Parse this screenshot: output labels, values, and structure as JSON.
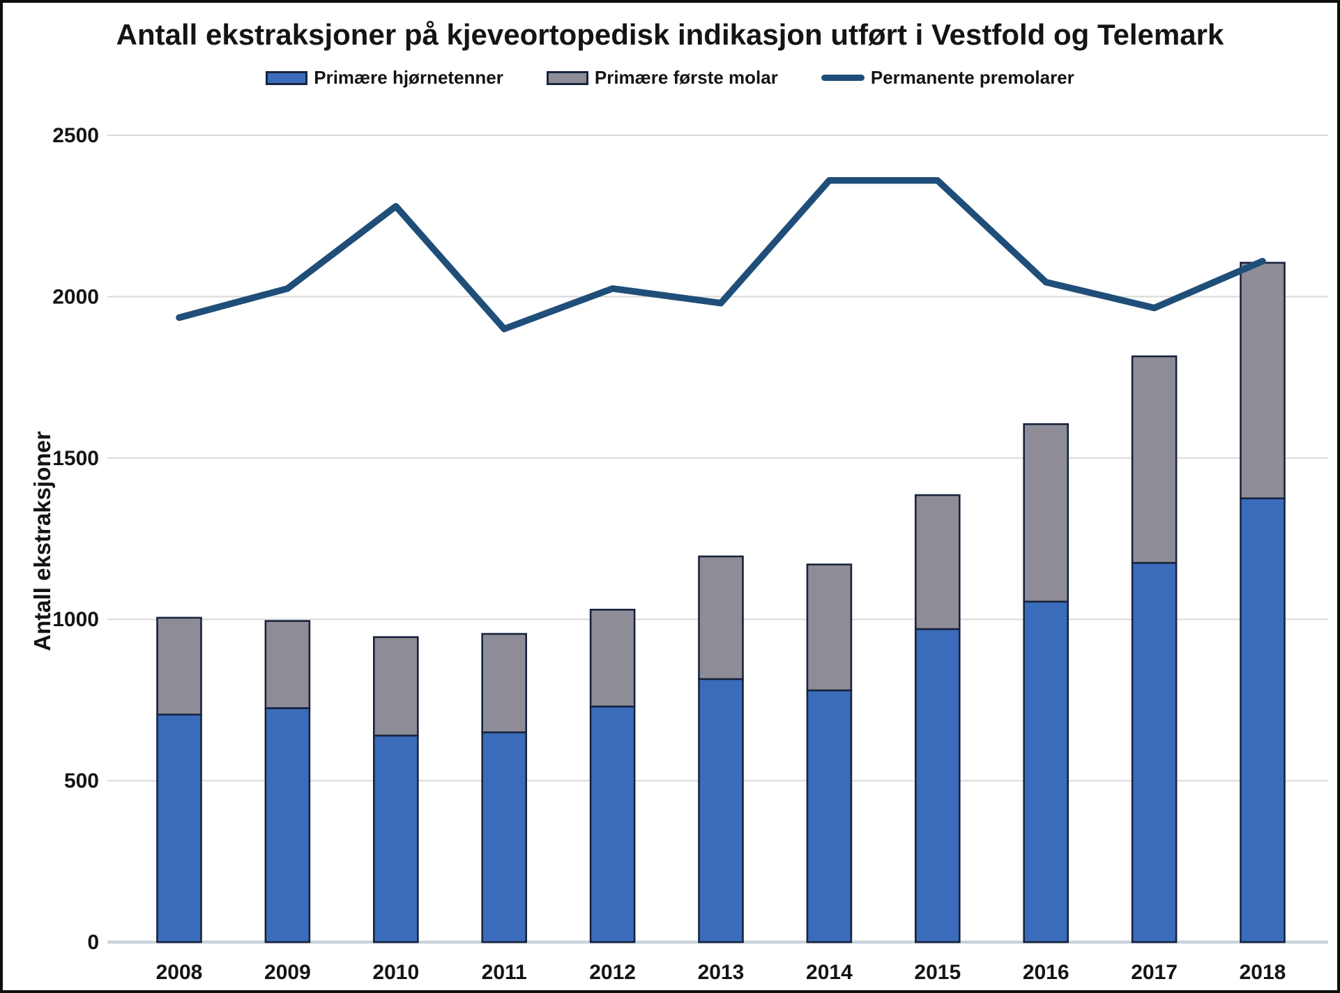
{
  "chart_data": {
    "type": "combo-stacked-bar-line",
    "title": "Antall ekstraksjoner på kjeveortopedisk indikasjon utført i Vestfold og Telemark",
    "xlabel": "",
    "ylabel": "Antall ekstraksjoner",
    "categories": [
      "2008",
      "2009",
      "2010",
      "2011",
      "2012",
      "2013",
      "2014",
      "2015",
      "2016",
      "2017",
      "2018"
    ],
    "y_ticks": [
      0,
      500,
      1000,
      1500,
      2000,
      2500
    ],
    "ylim": [
      0,
      2500
    ],
    "grid": "horizontal",
    "legend_position": "top-center",
    "series": [
      {
        "name": "Primære hjørnetenner",
        "type": "bar",
        "stack": "ekstraksjoner",
        "color": "#3B6CBB",
        "values": [
          705,
          725,
          640,
          650,
          730,
          815,
          780,
          970,
          1055,
          1175,
          1375
        ]
      },
      {
        "name": "Primære første molar",
        "type": "bar",
        "stack": "ekstraksjoner",
        "color": "#8E8D97",
        "values": [
          300,
          270,
          305,
          305,
          300,
          380,
          390,
          415,
          550,
          640,
          730
        ]
      },
      {
        "name": "Permanente premolarer",
        "type": "line",
        "color": "#1F4E79",
        "values": [
          1935,
          2025,
          2280,
          1900,
          2025,
          1980,
          2360,
          2360,
          2045,
          1965,
          2110
        ]
      }
    ],
    "stacked_totals": [
      1005,
      995,
      945,
      955,
      1030,
      1195,
      1170,
      1385,
      1605,
      1815,
      2105
    ],
    "colors": {
      "bar_outline": "#17233C",
      "gridline": "#D9D9D9",
      "zero_axis_line": "#C9D3DC",
      "text": "#141414"
    }
  }
}
